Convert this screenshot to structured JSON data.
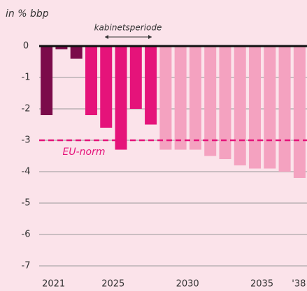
{
  "chart_data": {
    "type": "bar",
    "y_label": "in % bbp",
    "categories": [
      "2021",
      null,
      null,
      null,
      "2025",
      null,
      null,
      null,
      null,
      "2030",
      null,
      null,
      null,
      null,
      "2035",
      null,
      null,
      "'38"
    ],
    "values": [
      -2.2,
      -0.1,
      -0.4,
      -2.2,
      -2.6,
      -3.3,
      -2.0,
      -2.5,
      -3.3,
      -3.3,
      -3.3,
      -3.5,
      -3.6,
      -3.8,
      -3.9,
      -3.9,
      -4.0,
      -4.2
    ],
    "colors": [
      "#7b0b4a",
      "#7b0b4a",
      "#7b0b4a",
      "#e5137a",
      "#e5137a",
      "#e5137a",
      "#e5137a",
      "#e5137a",
      "#f4a2c0",
      "#f4a2c0",
      "#f4a2c0",
      "#f4a2c0",
      "#f4a2c0",
      "#f4a2c0",
      "#f4a2c0",
      "#f4a2c0",
      "#f4a2c0",
      "#f4a2c0"
    ],
    "ylim": [
      -7,
      0
    ],
    "yticks": [
      0,
      -1,
      -2,
      -3,
      -4,
      -5,
      -6,
      -7
    ],
    "grid": true,
    "reference_line": {
      "label": "EU-norm",
      "value": -3,
      "color": "#e5137a"
    },
    "period_label": "kabinetsperiode"
  }
}
